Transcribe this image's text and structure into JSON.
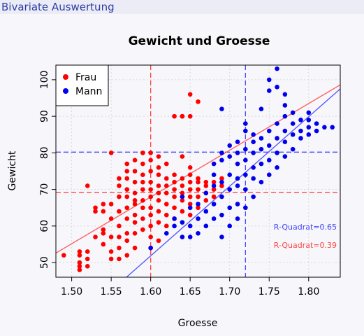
{
  "header": {
    "title": "Bivariate Auswertung"
  },
  "chart_data": {
    "type": "scatter",
    "title": "Gewicht und Groesse",
    "xlabel": "Groesse",
    "ylabel": "Gewicht",
    "xlim": [
      1.48,
      1.84
    ],
    "ylim": [
      46,
      104
    ],
    "xticks": [
      "1.50",
      "1.55",
      "1.60",
      "1.65",
      "1.70",
      "1.75",
      "1.80"
    ],
    "yticks": [
      "50",
      "60",
      "70",
      "80",
      "90",
      "100"
    ],
    "grid": true,
    "legend_position": "top-left",
    "series": [
      {
        "name": "Frau",
        "color": "#ff0000",
        "points": [
          [
            1.49,
            52
          ],
          [
            1.51,
            48
          ],
          [
            1.51,
            49
          ],
          [
            1.51,
            50
          ],
          [
            1.51,
            52
          ],
          [
            1.51,
            53
          ],
          [
            1.52,
            49
          ],
          [
            1.52,
            51
          ],
          [
            1.52,
            53
          ],
          [
            1.52,
            71
          ],
          [
            1.53,
            57
          ],
          [
            1.53,
            64
          ],
          [
            1.53,
            65
          ],
          [
            1.54,
            55
          ],
          [
            1.54,
            58
          ],
          [
            1.54,
            59
          ],
          [
            1.54,
            64
          ],
          [
            1.54,
            66
          ],
          [
            1.55,
            51
          ],
          [
            1.55,
            53
          ],
          [
            1.55,
            57
          ],
          [
            1.55,
            62
          ],
          [
            1.55,
            66
          ],
          [
            1.55,
            80
          ],
          [
            1.56,
            51
          ],
          [
            1.56,
            54
          ],
          [
            1.56,
            57
          ],
          [
            1.56,
            60
          ],
          [
            1.56,
            64
          ],
          [
            1.56,
            68
          ],
          [
            1.56,
            71
          ],
          [
            1.56,
            73
          ],
          [
            1.57,
            52
          ],
          [
            1.57,
            56
          ],
          [
            1.57,
            58
          ],
          [
            1.57,
            62
          ],
          [
            1.57,
            65
          ],
          [
            1.57,
            68
          ],
          [
            1.57,
            70
          ],
          [
            1.57,
            73
          ],
          [
            1.57,
            75
          ],
          [
            1.57,
            77
          ],
          [
            1.58,
            54
          ],
          [
            1.58,
            58
          ],
          [
            1.58,
            61
          ],
          [
            1.58,
            63
          ],
          [
            1.58,
            66
          ],
          [
            1.58,
            67
          ],
          [
            1.58,
            69
          ],
          [
            1.58,
            72
          ],
          [
            1.58,
            75
          ],
          [
            1.58,
            78
          ],
          [
            1.59,
            59
          ],
          [
            1.59,
            62
          ],
          [
            1.59,
            65
          ],
          [
            1.59,
            67
          ],
          [
            1.59,
            70
          ],
          [
            1.59,
            72
          ],
          [
            1.59,
            74
          ],
          [
            1.59,
            77
          ],
          [
            1.59,
            80
          ],
          [
            1.6,
            54
          ],
          [
            1.6,
            57
          ],
          [
            1.6,
            60
          ],
          [
            1.6,
            63
          ],
          [
            1.6,
            65
          ],
          [
            1.6,
            68
          ],
          [
            1.6,
            70
          ],
          [
            1.6,
            72
          ],
          [
            1.6,
            75
          ],
          [
            1.6,
            78
          ],
          [
            1.6,
            80
          ],
          [
            1.61,
            56
          ],
          [
            1.61,
            61
          ],
          [
            1.61,
            64
          ],
          [
            1.61,
            67
          ],
          [
            1.61,
            69
          ],
          [
            1.61,
            71
          ],
          [
            1.61,
            74
          ],
          [
            1.61,
            76
          ],
          [
            1.61,
            79
          ],
          [
            1.62,
            60
          ],
          [
            1.62,
            63
          ],
          [
            1.62,
            66
          ],
          [
            1.62,
            69
          ],
          [
            1.62,
            71
          ],
          [
            1.62,
            73
          ],
          [
            1.62,
            77
          ],
          [
            1.63,
            62
          ],
          [
            1.63,
            65
          ],
          [
            1.63,
            68
          ],
          [
            1.63,
            70
          ],
          [
            1.63,
            72
          ],
          [
            1.63,
            74
          ],
          [
            1.63,
            90
          ],
          [
            1.64,
            64
          ],
          [
            1.64,
            67
          ],
          [
            1.64,
            69
          ],
          [
            1.64,
            71
          ],
          [
            1.64,
            73
          ],
          [
            1.64,
            90
          ],
          [
            1.64,
            79
          ],
          [
            1.65,
            63
          ],
          [
            1.65,
            66
          ],
          [
            1.65,
            68
          ],
          [
            1.65,
            70
          ],
          [
            1.65,
            72
          ],
          [
            1.65,
            74
          ],
          [
            1.65,
            76
          ],
          [
            1.65,
            96
          ],
          [
            1.66,
            65
          ],
          [
            1.66,
            68
          ],
          [
            1.66,
            70
          ],
          [
            1.66,
            72
          ],
          [
            1.66,
            73
          ],
          [
            1.66,
            94
          ],
          [
            1.67,
            67
          ],
          [
            1.67,
            69
          ],
          [
            1.67,
            71
          ],
          [
            1.67,
            72
          ],
          [
            1.68,
            68
          ],
          [
            1.68,
            70
          ],
          [
            1.68,
            72
          ],
          [
            1.69,
            71
          ],
          [
            1.69,
            73
          ],
          [
            1.65,
            90
          ],
          [
            1.64,
            90
          ]
        ]
      },
      {
        "name": "Mann",
        "color": "#0000ee",
        "points": [
          [
            1.6,
            54
          ],
          [
            1.62,
            58
          ],
          [
            1.63,
            60
          ],
          [
            1.63,
            62
          ],
          [
            1.64,
            57
          ],
          [
            1.64,
            61
          ],
          [
            1.64,
            68
          ],
          [
            1.65,
            57
          ],
          [
            1.65,
            60
          ],
          [
            1.65,
            65
          ],
          [
            1.66,
            58
          ],
          [
            1.66,
            62
          ],
          [
            1.66,
            66
          ],
          [
            1.67,
            60
          ],
          [
            1.67,
            64
          ],
          [
            1.67,
            69
          ],
          [
            1.68,
            62
          ],
          [
            1.68,
            66
          ],
          [
            1.68,
            71
          ],
          [
            1.68,
            74
          ],
          [
            1.68,
            77
          ],
          [
            1.69,
            57
          ],
          [
            1.69,
            63
          ],
          [
            1.69,
            68
          ],
          [
            1.69,
            72
          ],
          [
            1.69,
            78
          ],
          [
            1.69,
            80
          ],
          [
            1.69,
            92
          ],
          [
            1.7,
            60
          ],
          [
            1.7,
            65
          ],
          [
            1.7,
            70
          ],
          [
            1.7,
            74
          ],
          [
            1.7,
            79
          ],
          [
            1.7,
            82
          ],
          [
            1.71,
            62
          ],
          [
            1.71,
            66
          ],
          [
            1.71,
            71
          ],
          [
            1.71,
            73
          ],
          [
            1.71,
            77
          ],
          [
            1.71,
            80
          ],
          [
            1.71,
            83
          ],
          [
            1.72,
            65
          ],
          [
            1.72,
            70
          ],
          [
            1.72,
            74
          ],
          [
            1.72,
            78
          ],
          [
            1.72,
            81
          ],
          [
            1.72,
            86
          ],
          [
            1.72,
            88
          ],
          [
            1.73,
            68
          ],
          [
            1.73,
            73
          ],
          [
            1.73,
            76
          ],
          [
            1.73,
            80
          ],
          [
            1.73,
            83
          ],
          [
            1.73,
            85
          ],
          [
            1.74,
            72
          ],
          [
            1.74,
            77
          ],
          [
            1.74,
            81
          ],
          [
            1.74,
            84
          ],
          [
            1.74,
            92
          ],
          [
            1.75,
            74
          ],
          [
            1.75,
            78
          ],
          [
            1.75,
            82
          ],
          [
            1.75,
            86
          ],
          [
            1.75,
            97
          ],
          [
            1.75,
            100
          ],
          [
            1.76,
            76
          ],
          [
            1.76,
            80
          ],
          [
            1.76,
            84
          ],
          [
            1.76,
            88
          ],
          [
            1.76,
            98
          ],
          [
            1.76,
            103
          ],
          [
            1.77,
            79
          ],
          [
            1.77,
            83
          ],
          [
            1.77,
            86
          ],
          [
            1.77,
            90
          ],
          [
            1.77,
            93
          ],
          [
            1.77,
            96
          ],
          [
            1.78,
            81
          ],
          [
            1.78,
            85
          ],
          [
            1.78,
            88
          ],
          [
            1.78,
            91
          ],
          [
            1.79,
            84
          ],
          [
            1.79,
            86
          ],
          [
            1.79,
            89
          ],
          [
            1.8,
            85
          ],
          [
            1.8,
            87
          ],
          [
            1.8,
            89
          ],
          [
            1.8,
            91
          ],
          [
            1.81,
            86
          ],
          [
            1.81,
            88
          ],
          [
            1.82,
            87
          ],
          [
            1.83,
            87
          ]
        ]
      }
    ],
    "regression_lines": [
      {
        "name": "Frau",
        "color": "#ff6060",
        "x": [
          1.48,
          1.84
        ],
        "y": [
          52.6,
          98.6
        ],
        "r2_label": "R-Quadrat=0.39"
      },
      {
        "name": "Mann",
        "color": "#5a5aff",
        "x": [
          1.48,
          1.84
        ],
        "y": [
          29.0,
          97.5
        ],
        "r2_label": "R-Quadrat=0.65"
      }
    ],
    "reference_lines": [
      {
        "series": "Frau",
        "x": 1.6,
        "y": 69.2,
        "color": "#ff4444"
      },
      {
        "series": "Mann",
        "x": 1.72,
        "y": 80.2,
        "color": "#4a4aff"
      }
    ]
  }
}
